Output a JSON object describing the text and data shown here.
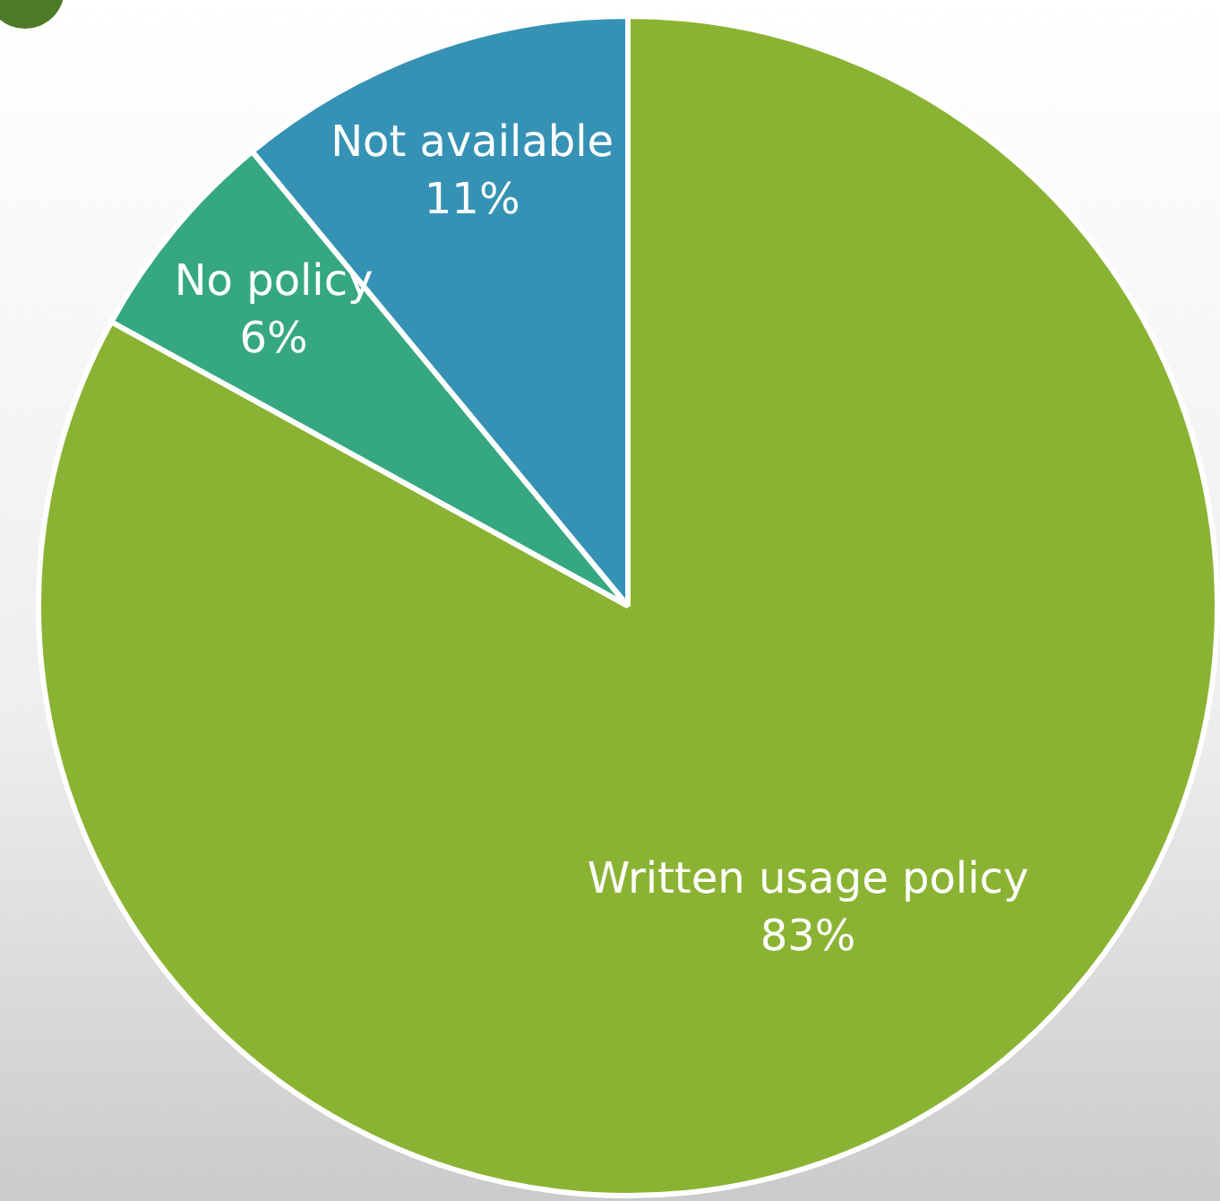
{
  "chart_data": {
    "type": "pie",
    "categories": [
      "Written usage policy",
      "No policy",
      "Not available"
    ],
    "values": [
      83,
      6,
      11
    ],
    "value_labels": [
      "83%",
      "6%",
      "11%"
    ],
    "colors": [
      "#8bb333",
      "#35a783",
      "#3592b5"
    ],
    "legend": false
  }
}
